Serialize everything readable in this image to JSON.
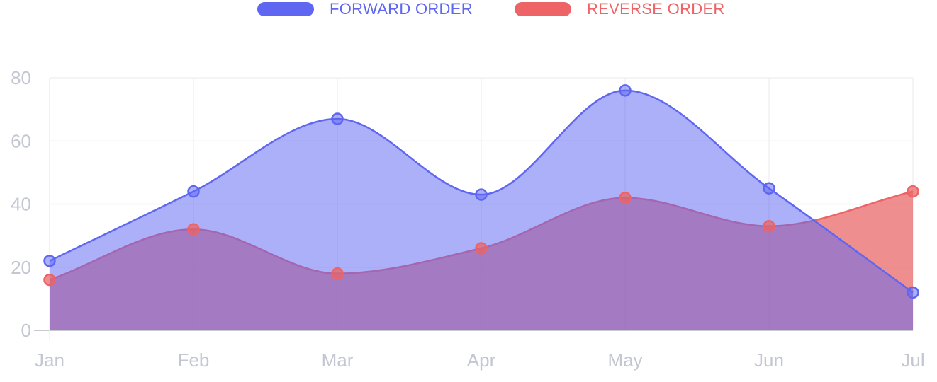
{
  "colors": {
    "forward": "#5f67f2",
    "forward_fill": "rgba(95,103,242,0.52)",
    "reverse": "#ee6466",
    "reverse_fill": "rgba(233,98,98,0.72)",
    "grid": "#f0f0f3",
    "axis": "#c8cad2",
    "tick_text": "#c4c7d1"
  },
  "legend": [
    {
      "label": "FORWARD ORDER",
      "color": "#5f67f2"
    },
    {
      "label": "REVERSE ORDER",
      "color": "#ee6466"
    }
  ],
  "chart_data": {
    "type": "area",
    "categories": [
      "Jan",
      "Feb",
      "Mar",
      "Apr",
      "May",
      "Jun",
      "Jul"
    ],
    "series": [
      {
        "name": "FORWARD ORDER",
        "values": [
          22,
          44,
          67,
          43,
          76,
          45,
          12
        ]
      },
      {
        "name": "REVERSE ORDER",
        "values": [
          16,
          32,
          18,
          26,
          42,
          33,
          44
        ]
      }
    ],
    "title": "",
    "xlabel": "",
    "ylabel": "",
    "ylim": [
      0,
      80
    ],
    "yticks": [
      "0",
      "20",
      "40",
      "60",
      "80"
    ],
    "grid": true,
    "legend_position": "top-center",
    "smoothed": true
  }
}
